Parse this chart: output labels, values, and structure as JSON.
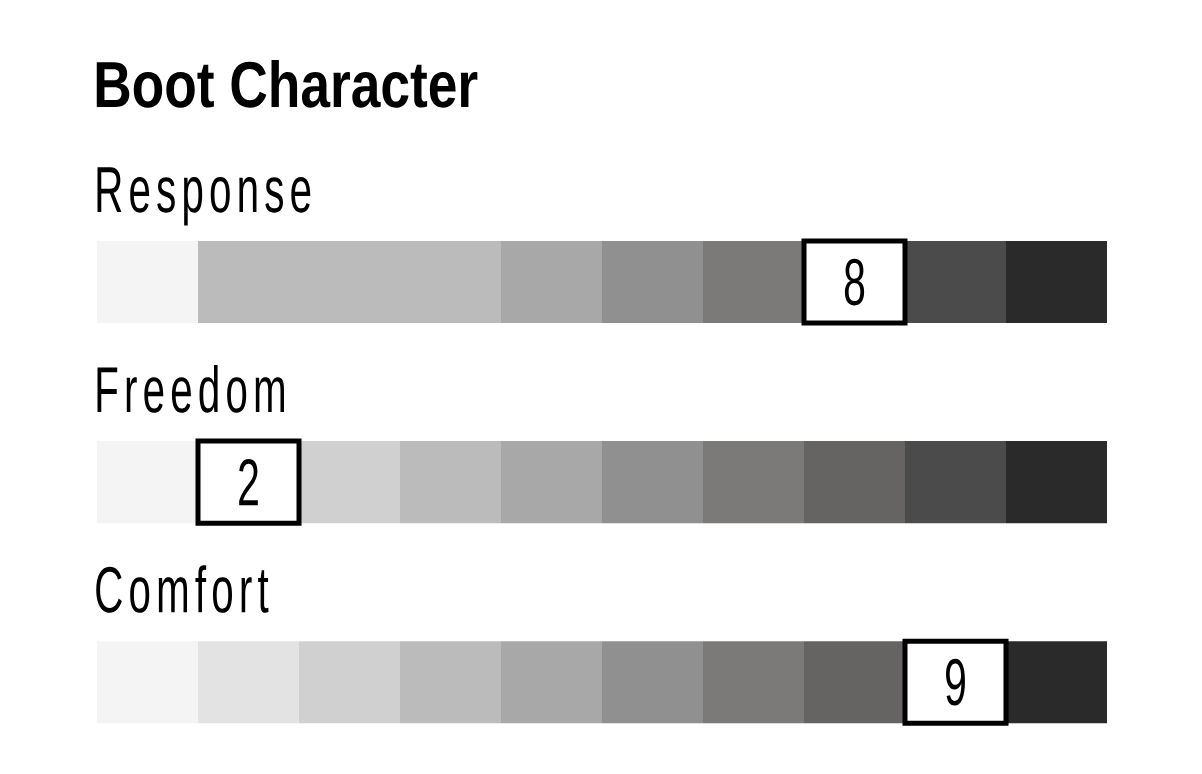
{
  "chart_data": {
    "type": "other",
    "title": "Boot Character",
    "categories": [
      "Response",
      "Freedom",
      "Comfort"
    ],
    "values": [
      8,
      2,
      9
    ],
    "data_labels": true,
    "colors": [
      [
        "#f4f4f4",
        "#bbbbbb",
        "#bbbbbb",
        "#bbbbbb",
        "#a8a8a8",
        "#909090",
        "#7c7979",
        "#ffffff",
        "#4b4b4b",
        "#2a2a2a"
      ],
      [
        "#f4f4f4",
        "#ffffff",
        "#d0d0d0",
        "#bbbbbb",
        "#a8a8a8",
        "#909090",
        "#7c7979",
        "#666363",
        "#4b4b4b",
        "#2a2a2a"
      ],
      [
        "#f4f4f4",
        "#e3e3e3",
        "#d0d0d0",
        "#bbbbbb",
        "#a8a8a8",
        "#909090",
        "#7c7979",
        "#666363",
        "#ffffff",
        "#2a2a2a"
      ]
    ]
  }
}
